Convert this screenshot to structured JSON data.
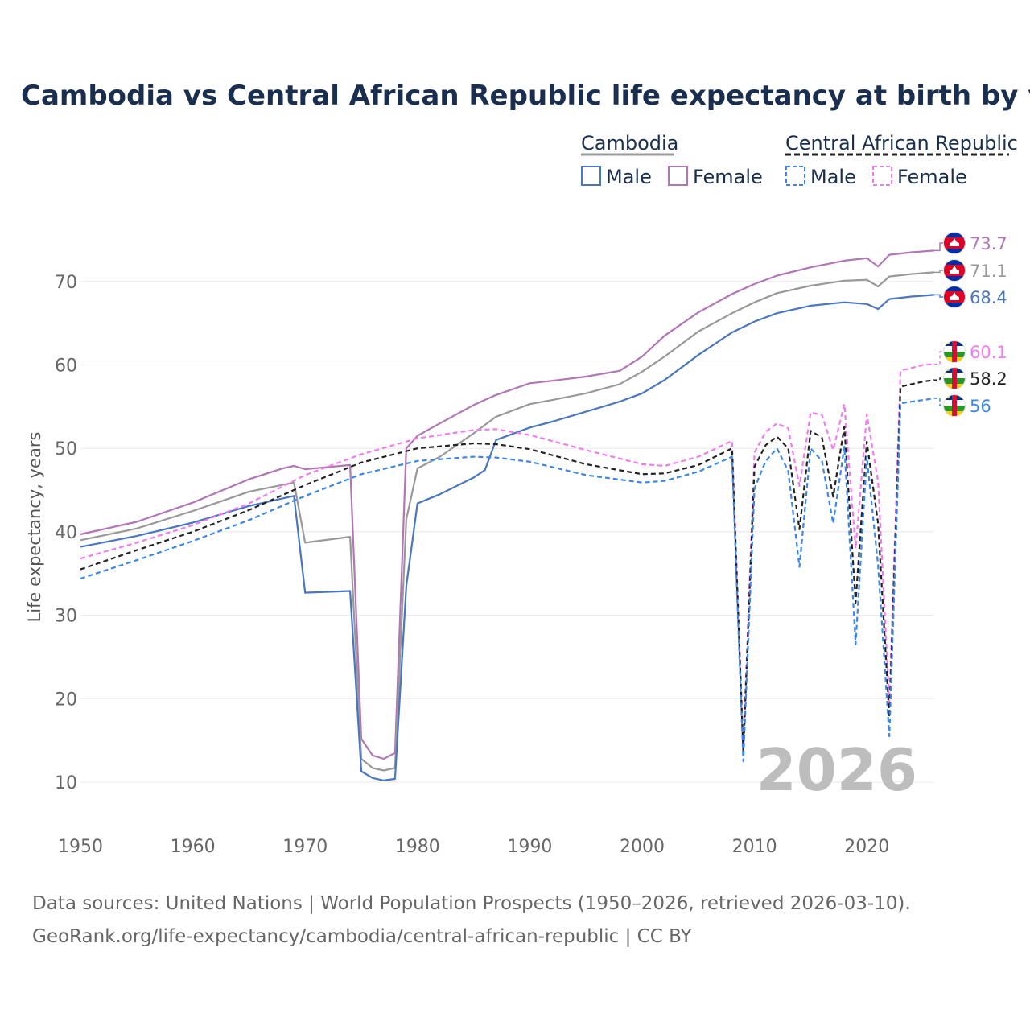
{
  "chart_data": {
    "type": "line",
    "title": "Cambodia vs Central African Republic life expectancy at birth by year",
    "ylabel": "Life expectancy, years",
    "xlabel": "",
    "xlim": [
      1950,
      2026
    ],
    "ylim": [
      5,
      78
    ],
    "x_ticks": [
      1950,
      1960,
      1970,
      1980,
      1990,
      2000,
      2010,
      2020
    ],
    "y_ticks": [
      10,
      20,
      30,
      40,
      50,
      60,
      70
    ],
    "grid": true,
    "year_stamp": "2026",
    "legend": {
      "placement": "top-right",
      "groups": [
        {
          "name": "Cambodia",
          "style": "solid",
          "color": "#999999",
          "entries": [
            {
              "label": "Male",
              "color": "#4a76c0"
            },
            {
              "label": "Female",
              "color": "#b176b6"
            }
          ]
        },
        {
          "name": "Central African Republic",
          "style": "dashed",
          "color": "#222222",
          "entries": [
            {
              "label": "Male",
              "color": "#3b86e8"
            },
            {
              "label": "Female",
              "color": "#f07cf0"
            }
          ]
        }
      ]
    },
    "series": [
      {
        "name": "Cambodia Female",
        "country": "Cambodia",
        "flag": "kh",
        "color": "#b176b6",
        "dash": false,
        "end_label": "73.7",
        "points": [
          [
            1950,
            39.7
          ],
          [
            1955,
            41.2
          ],
          [
            1960,
            43.5
          ],
          [
            1965,
            46.3
          ],
          [
            1968,
            47.6
          ],
          [
            1969,
            47.9
          ],
          [
            1970,
            47.5
          ],
          [
            1974,
            48.0
          ],
          [
            1975,
            15.2
          ],
          [
            1976,
            13.2
          ],
          [
            1977,
            12.8
          ],
          [
            1978,
            13.5
          ],
          [
            1979,
            50.0
          ],
          [
            1980,
            51.5
          ],
          [
            1982,
            53.0
          ],
          [
            1985,
            55.2
          ],
          [
            1987,
            56.4
          ],
          [
            1990,
            57.8
          ],
          [
            1992,
            58.1
          ],
          [
            1995,
            58.6
          ],
          [
            1998,
            59.3
          ],
          [
            2000,
            61.0
          ],
          [
            2002,
            63.5
          ],
          [
            2005,
            66.3
          ],
          [
            2008,
            68.5
          ],
          [
            2010,
            69.7
          ],
          [
            2012,
            70.7
          ],
          [
            2015,
            71.7
          ],
          [
            2018,
            72.5
          ],
          [
            2020,
            72.8
          ],
          [
            2021,
            71.8
          ],
          [
            2022,
            73.2
          ],
          [
            2024,
            73.5
          ],
          [
            2026,
            73.7
          ]
        ]
      },
      {
        "name": "Cambodia Total",
        "country": "Cambodia",
        "flag": "kh",
        "color": "#999999",
        "dash": false,
        "end_label": "71.1",
        "points": [
          [
            1950,
            39.0
          ],
          [
            1955,
            40.4
          ],
          [
            1960,
            42.5
          ],
          [
            1965,
            44.8
          ],
          [
            1969,
            45.9
          ],
          [
            1970,
            38.7
          ],
          [
            1974,
            39.4
          ],
          [
            1975,
            12.8
          ],
          [
            1976,
            11.7
          ],
          [
            1977,
            11.4
          ],
          [
            1978,
            11.7
          ],
          [
            1979,
            41.5
          ],
          [
            1980,
            47.6
          ],
          [
            1982,
            49.0
          ],
          [
            1985,
            51.8
          ],
          [
            1987,
            53.8
          ],
          [
            1990,
            55.3
          ],
          [
            1992,
            55.8
          ],
          [
            1995,
            56.6
          ],
          [
            1998,
            57.7
          ],
          [
            2000,
            59.2
          ],
          [
            2002,
            61.0
          ],
          [
            2005,
            64.0
          ],
          [
            2008,
            66.2
          ],
          [
            2010,
            67.5
          ],
          [
            2012,
            68.6
          ],
          [
            2015,
            69.5
          ],
          [
            2018,
            70.1
          ],
          [
            2020,
            70.2
          ],
          [
            2021,
            69.4
          ],
          [
            2022,
            70.6
          ],
          [
            2024,
            70.9
          ],
          [
            2026,
            71.1
          ]
        ]
      },
      {
        "name": "Cambodia Male",
        "country": "Cambodia",
        "flag": "kh",
        "color": "#4a76c0",
        "dash": false,
        "end_label": "68.4",
        "points": [
          [
            1950,
            38.2
          ],
          [
            1955,
            39.5
          ],
          [
            1960,
            41.1
          ],
          [
            1965,
            43.1
          ],
          [
            1969,
            44.3
          ],
          [
            1970,
            32.7
          ],
          [
            1974,
            32.9
          ],
          [
            1975,
            11.3
          ],
          [
            1976,
            10.5
          ],
          [
            1977,
            10.2
          ],
          [
            1978,
            10.4
          ],
          [
            1979,
            33.5
          ],
          [
            1980,
            43.4
          ],
          [
            1982,
            44.5
          ],
          [
            1985,
            46.5
          ],
          [
            1986,
            47.4
          ],
          [
            1987,
            51.0
          ],
          [
            1990,
            52.5
          ],
          [
            1992,
            53.2
          ],
          [
            1995,
            54.4
          ],
          [
            1998,
            55.6
          ],
          [
            2000,
            56.6
          ],
          [
            2002,
            58.2
          ],
          [
            2005,
            61.2
          ],
          [
            2008,
            63.9
          ],
          [
            2010,
            65.2
          ],
          [
            2012,
            66.2
          ],
          [
            2015,
            67.1
          ],
          [
            2018,
            67.5
          ],
          [
            2020,
            67.3
          ],
          [
            2021,
            66.7
          ],
          [
            2022,
            67.9
          ],
          [
            2024,
            68.2
          ],
          [
            2026,
            68.4
          ]
        ]
      },
      {
        "name": "Central African Republic Female",
        "country": "Central African Republic",
        "flag": "cf",
        "color": "#f07cf0",
        "dash": true,
        "end_label": "60.1",
        "points": [
          [
            1950,
            36.8
          ],
          [
            1955,
            38.7
          ],
          [
            1960,
            40.8
          ],
          [
            1965,
            43.4
          ],
          [
            1970,
            46.8
          ],
          [
            1975,
            49.3
          ],
          [
            1980,
            51.2
          ],
          [
            1985,
            52.2
          ],
          [
            1987,
            52.3
          ],
          [
            1990,
            51.6
          ],
          [
            1995,
            49.8
          ],
          [
            2000,
            48.1
          ],
          [
            2002,
            47.9
          ],
          [
            2005,
            49.0
          ],
          [
            2008,
            50.9
          ],
          [
            2009,
            14.0
          ],
          [
            2010,
            49.5
          ],
          [
            2011,
            52.0
          ],
          [
            2012,
            53.0
          ],
          [
            2013,
            52.4
          ],
          [
            2014,
            45.5
          ],
          [
            2015,
            54.3
          ],
          [
            2016,
            54.0
          ],
          [
            2017,
            49.8
          ],
          [
            2018,
            55.3
          ],
          [
            2019,
            38.0
          ],
          [
            2020,
            54.1
          ],
          [
            2021,
            46.0
          ],
          [
            2022,
            19.5
          ],
          [
            2023,
            59.3
          ],
          [
            2025,
            60.0
          ],
          [
            2026,
            60.1
          ]
        ]
      },
      {
        "name": "Central African Republic Total",
        "country": "Central African Republic",
        "flag": "cf",
        "color": "#222222",
        "dash": true,
        "end_label": "58.2",
        "points": [
          [
            1950,
            35.5
          ],
          [
            1955,
            37.8
          ],
          [
            1960,
            40.0
          ],
          [
            1965,
            42.6
          ],
          [
            1970,
            45.6
          ],
          [
            1975,
            48.3
          ],
          [
            1980,
            50.0
          ],
          [
            1985,
            50.6
          ],
          [
            1987,
            50.5
          ],
          [
            1990,
            49.9
          ],
          [
            1995,
            48.1
          ],
          [
            2000,
            46.9
          ],
          [
            2002,
            47.0
          ],
          [
            2005,
            48.0
          ],
          [
            2008,
            50.0
          ],
          [
            2009,
            13.5
          ],
          [
            2010,
            47.8
          ],
          [
            2011,
            50.4
          ],
          [
            2012,
            51.4
          ],
          [
            2013,
            50.0
          ],
          [
            2014,
            40.3
          ],
          [
            2015,
            52.1
          ],
          [
            2016,
            51.3
          ],
          [
            2017,
            44.2
          ],
          [
            2018,
            52.6
          ],
          [
            2019,
            31.5
          ],
          [
            2020,
            50.8
          ],
          [
            2021,
            41.0
          ],
          [
            2022,
            17.8
          ],
          [
            2023,
            57.4
          ],
          [
            2025,
            58.0
          ],
          [
            2026,
            58.2
          ]
        ]
      },
      {
        "name": "Central African Republic Male",
        "country": "Central African Republic",
        "flag": "cf",
        "color": "#3b86e8",
        "dash": true,
        "end_label": "56",
        "points": [
          [
            1950,
            34.4
          ],
          [
            1955,
            36.6
          ],
          [
            1960,
            38.9
          ],
          [
            1965,
            41.4
          ],
          [
            1970,
            44.3
          ],
          [
            1975,
            46.9
          ],
          [
            1980,
            48.5
          ],
          [
            1985,
            49.0
          ],
          [
            1987,
            48.9
          ],
          [
            1990,
            48.4
          ],
          [
            1995,
            46.8
          ],
          [
            2000,
            45.9
          ],
          [
            2002,
            46.1
          ],
          [
            2005,
            47.2
          ],
          [
            2008,
            49.0
          ],
          [
            2009,
            12.5
          ],
          [
            2010,
            45.2
          ],
          [
            2011,
            48.5
          ],
          [
            2012,
            50.0
          ],
          [
            2013,
            47.3
          ],
          [
            2014,
            35.8
          ],
          [
            2015,
            50.0
          ],
          [
            2016,
            48.5
          ],
          [
            2017,
            41.0
          ],
          [
            2018,
            50.2
          ],
          [
            2019,
            26.5
          ],
          [
            2020,
            49.0
          ],
          [
            2021,
            36.0
          ],
          [
            2022,
            15.5
          ],
          [
            2023,
            55.4
          ],
          [
            2025,
            55.8
          ],
          [
            2026,
            56.0
          ]
        ]
      }
    ]
  },
  "footer": {
    "source_line": "Data sources: United Nations | World Population Prospects (1950–2026, retrieved 2026-03-10).",
    "url_line": "GeoRank.org/life-expectancy/cambodia/central-african-republic | CC BY"
  }
}
